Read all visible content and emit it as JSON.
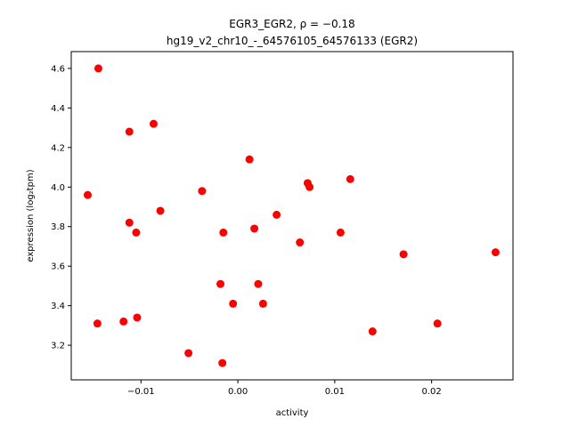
{
  "chart_data": {
    "type": "scatter",
    "title_line1": "EGR3_EGR2, ρ = −0.18",
    "title_line2": "hg19_v2_chr10_-_64576105_64576133 (EGR2)",
    "xlabel": "activity",
    "ylabel": "expression (log₂tpm)",
    "xlim": [
      -0.0172,
      0.0284
    ],
    "ylim": [
      3.025,
      4.685
    ],
    "xticks": [
      -0.01,
      0.0,
      0.01,
      0.02
    ],
    "xtick_labels": [
      "−0.01",
      "0.00",
      "0.01",
      "0.02"
    ],
    "yticks": [
      3.2,
      3.4,
      3.6,
      3.8,
      4.0,
      4.2,
      4.4,
      4.6
    ],
    "ytick_labels": [
      "3.2",
      "3.4",
      "3.6",
      "3.8",
      "4.0",
      "4.2",
      "4.4",
      "4.6"
    ],
    "marker_color": "#ff0000",
    "grid": false,
    "points": [
      {
        "x": -0.0144,
        "y": 4.6
      },
      {
        "x": -0.0112,
        "y": 4.28
      },
      {
        "x": -0.0087,
        "y": 4.32
      },
      {
        "x": -0.0155,
        "y": 3.96
      },
      {
        "x": -0.0112,
        "y": 3.82
      },
      {
        "x": -0.0105,
        "y": 3.77
      },
      {
        "x": -0.008,
        "y": 3.88
      },
      {
        "x": -0.0037,
        "y": 3.98
      },
      {
        "x": -0.0015,
        "y": 3.77
      },
      {
        "x": -0.0018,
        "y": 3.51
      },
      {
        "x": -0.0005,
        "y": 3.41
      },
      {
        "x": -0.0145,
        "y": 3.31
      },
      {
        "x": -0.0118,
        "y": 3.32
      },
      {
        "x": -0.0104,
        "y": 3.34
      },
      {
        "x": -0.0051,
        "y": 3.16
      },
      {
        "x": -0.0016,
        "y": 3.11
      },
      {
        "x": 0.0012,
        "y": 4.14
      },
      {
        "x": 0.0017,
        "y": 3.79
      },
      {
        "x": 0.0021,
        "y": 3.51
      },
      {
        "x": 0.0026,
        "y": 3.41
      },
      {
        "x": 0.004,
        "y": 3.86
      },
      {
        "x": 0.0064,
        "y": 3.72
      },
      {
        "x": 0.0072,
        "y": 4.02
      },
      {
        "x": 0.0074,
        "y": 4.0
      },
      {
        "x": 0.0106,
        "y": 3.77
      },
      {
        "x": 0.0116,
        "y": 4.04
      },
      {
        "x": 0.0139,
        "y": 3.27
      },
      {
        "x": 0.0171,
        "y": 3.66
      },
      {
        "x": 0.0206,
        "y": 3.31
      },
      {
        "x": 0.0266,
        "y": 3.67
      }
    ]
  }
}
